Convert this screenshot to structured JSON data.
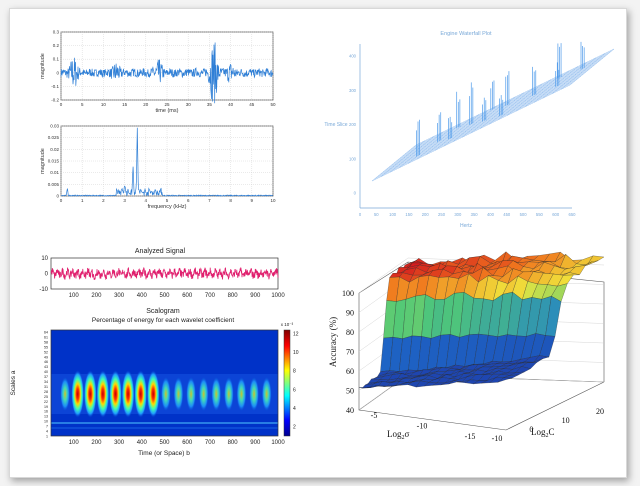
{
  "colors": {
    "signal_blue": "#2f7fd6",
    "signal_pink": "#e0206e",
    "waterfall": "#4f9bea",
    "waterfall_axis": "#7aa9d8"
  },
  "chart_data": [
    {
      "type": "line",
      "xlabel": "time (ms)",
      "ylabel": "magnitude",
      "xticks": [
        "0",
        "5",
        "10",
        "15",
        "20",
        "25",
        "30",
        "35",
        "40",
        "45",
        "50"
      ],
      "yticks": [
        "-0.2",
        "-0.1",
        "0",
        "0.1",
        "0.2",
        "0.3"
      ],
      "xlim": [
        0,
        50
      ],
      "ylim": [
        -0.2,
        0.3
      ],
      "grid": true,
      "note": "noisy time-domain signal with bursts near 3, 23 and 36 ms"
    },
    {
      "type": "line",
      "xlabel": "frequency (kHz)",
      "ylabel": "magnitude",
      "xticks": [
        "0",
        "1",
        "2",
        "3",
        "4",
        "5",
        "6",
        "7",
        "8",
        "9",
        "10"
      ],
      "yticks": [
        "0",
        "0.005",
        "0.01",
        "0.015",
        "0.02",
        "0.025",
        "0.03"
      ],
      "xlim": [
        0,
        10
      ],
      "ylim": [
        0,
        0.03
      ],
      "grid": true,
      "peaks": [
        {
          "x": 3.6,
          "y": 0.028
        },
        {
          "x": 3.4,
          "y": 0.012
        },
        {
          "x": 3.0,
          "y": 0.004
        },
        {
          "x": 0.3,
          "y": 0.003
        }
      ]
    },
    {
      "type": "area",
      "title": "Engine Waterfall Plot",
      "xlabel": "Hertz",
      "ylabel": "Time Slice",
      "xticks": [
        "0",
        "50",
        "100",
        "150",
        "200",
        "250",
        "300",
        "350",
        "400",
        "450",
        "500",
        "550",
        "600",
        "650"
      ],
      "yticks": [
        "0",
        "100",
        "200",
        "300",
        "400"
      ]
    },
    {
      "type": "line",
      "title": "Analyzed Signal",
      "xticks": [
        "100",
        "200",
        "300",
        "400",
        "500",
        "600",
        "700",
        "800",
        "900",
        "1000"
      ],
      "yticks": [
        "10",
        "0",
        "-10"
      ],
      "ylim": [
        -10,
        10
      ],
      "xlim": [
        0,
        1000
      ]
    },
    {
      "type": "heatmap",
      "title": "Scalogram",
      "subtitle": "Percentage of energy for each wavelet coefficient",
      "xlabel": "Time (or Space) b",
      "ylabel": "Scales a",
      "xticks": [
        "100",
        "200",
        "300",
        "400",
        "500",
        "600",
        "700",
        "800",
        "900",
        "1000"
      ],
      "yticks": [
        "64",
        "61",
        "58",
        "55",
        "52",
        "49",
        "46",
        "43",
        "40",
        "37",
        "34",
        "31",
        "28",
        "25",
        "22",
        "19",
        "16",
        "13",
        "10",
        "7",
        "4",
        "1"
      ],
      "colorbar_ticks": [
        "12",
        "10",
        "8",
        "6",
        "4",
        "2"
      ],
      "colorbar_exponent": "x 10⁻³"
    },
    {
      "type": "area",
      "chart_kind": "3d-surface",
      "zlabel": "Accuracy (%)",
      "xlabel_base": "Log",
      "xlabel_sub": "2",
      "xlabel_tail": "C",
      "ylabel_base": "Log",
      "ylabel_sub": "2",
      "ylabel_tail": "σ",
      "zticks": [
        "40",
        "50",
        "60",
        "70",
        "80",
        "90",
        "100"
      ],
      "xticks": [
        "-10",
        "0",
        "10",
        "20"
      ],
      "yticks": [
        "-15",
        "-10",
        "-5"
      ],
      "zlim": [
        40,
        100
      ]
    }
  ]
}
